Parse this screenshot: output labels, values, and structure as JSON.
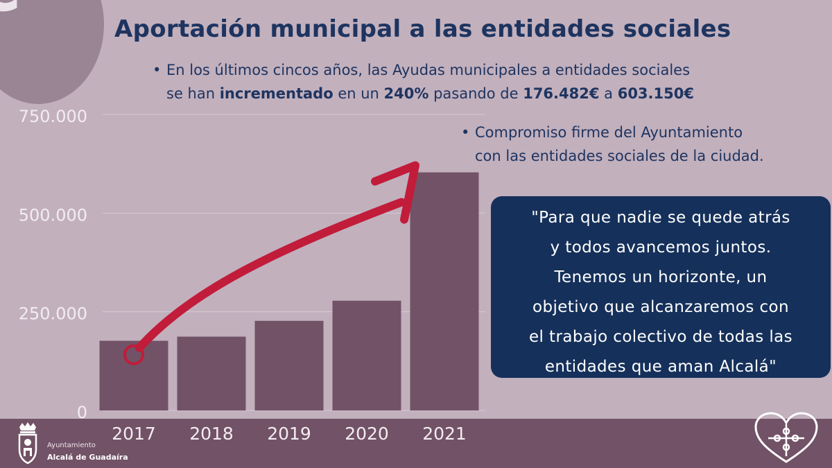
{
  "header": {
    "euro_symbol": "€",
    "title": "Aportación municipal a las entidades sociales"
  },
  "bullets": {
    "dot": "•",
    "b1_line1": "En los últimos cincos años, las Ayudas municipales a entidades sociales",
    "b1_line2_a": "se han ",
    "b1_line2_b": "incrementado",
    "b1_line2_c": " en un ",
    "b1_line2_d": "240%",
    "b1_line2_e": " pasando de ",
    "b1_line2_f": "176.482€",
    "b1_line2_g": " a ",
    "b1_line2_h": "603.150€",
    "b2_line1": "Compromiso firme del Ayuntamiento",
    "b2_line2": "con las entidades sociales de la ciudad."
  },
  "quote": {
    "lines": [
      "\"Para que nadie se quede atrás",
      "y todos avancemos juntos.",
      "Tenemos un horizonte, un",
      "objetivo que alcanzaremos con",
      "el trabajo colectivo de todas las",
      "entidades que aman Alcalá\""
    ]
  },
  "footer": {
    "org_line1": "Ayuntamiento",
    "org_line2": "Alcalá de Guadaíra"
  },
  "colors": {
    "background": "#c2b0bd",
    "bar": "#725266",
    "title": "#1e3460",
    "quote_bg": "#15305a",
    "arrow": "#c11c3a",
    "axis_text": "#f3edf1"
  },
  "icons": [
    "euro-icon",
    "coat-of-arms-icon",
    "puzzle-heart-icon",
    "trend-arrow-icon"
  ],
  "chart_data": {
    "type": "bar",
    "categories": [
      "2017",
      "2018",
      "2019",
      "2020",
      "2021"
    ],
    "values": [
      176482,
      187000,
      227000,
      278000,
      603150
    ],
    "ylim": [
      0,
      750000
    ],
    "yticks": [
      0,
      250000,
      500000,
      750000
    ],
    "ytick_labels": [
      "0",
      "250.000",
      "500.000",
      "750.000"
    ],
    "grid": true,
    "title": "",
    "xlabel": "",
    "ylabel": ""
  }
}
